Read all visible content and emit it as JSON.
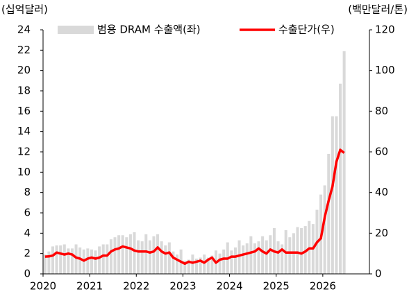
{
  "chart_data": {
    "type": "bar-line",
    "y_label": "(십억달러)",
    "y2_label": "(백만달러/톤)",
    "categories": [
      "2020",
      null,
      null,
      null,
      null,
      null,
      null,
      null,
      null,
      null,
      null,
      null,
      "2021",
      null,
      null,
      null,
      null,
      null,
      null,
      null,
      null,
      null,
      null,
      null,
      "2022",
      null,
      null,
      null,
      null,
      null,
      null,
      null,
      null,
      null,
      null,
      null,
      "2023",
      null,
      null,
      null,
      null,
      null,
      null,
      null,
      null,
      null,
      null,
      null,
      "2024",
      null,
      null,
      null,
      null,
      null,
      null,
      null,
      null,
      null,
      null,
      null,
      "2025",
      null,
      null,
      null,
      null,
      null,
      null,
      null,
      null,
      null,
      null,
      null,
      "2026",
      null,
      null,
      null,
      null,
      null,
      null,
      null,
      null,
      null,
      null,
      null
    ],
    "series": [
      {
        "name": "범용 DRAM 수출액(좌)",
        "color": "#d9d9d9",
        "kind": "bar",
        "axis": "y",
        "values": [
          1.9,
          2.2,
          2.7,
          2.8,
          2.8,
          2.9,
          2.5,
          2.5,
          2.9,
          2.6,
          2.4,
          2.5,
          2.4,
          2.3,
          2.7,
          2.9,
          2.9,
          3.4,
          3.6,
          3.8,
          3.8,
          3.6,
          3.9,
          4.1,
          3.3,
          3.2,
          3.9,
          3.3,
          3.7,
          3.9,
          3.2,
          2.8,
          3.1,
          2.2,
          1.9,
          2.4,
          1.3,
          1.4,
          1.9,
          1.5,
          1.6,
          1.9,
          1.6,
          1.8,
          2.3,
          2.0,
          2.4,
          3.1,
          2.3,
          2.6,
          3.3,
          2.8,
          3.0,
          3.7,
          3.0,
          3.2,
          3.7,
          3.3,
          3.8,
          4.5,
          3.2,
          2.9,
          4.3,
          3.6,
          4.0,
          4.6,
          4.5,
          4.7,
          5.2,
          4.9,
          6.3,
          7.8,
          8.7,
          11.8,
          15.5,
          15.5,
          18.7,
          21.9,
          null,
          null,
          null,
          null,
          null,
          null
        ]
      },
      {
        "name": "수출단가(우)",
        "color": "#ff0000",
        "kind": "line",
        "axis": "y2",
        "values": [
          8.5,
          8.6,
          9,
          10.5,
          10,
          9.5,
          10,
          9.5,
          8,
          7.5,
          6.5,
          7.5,
          8,
          7.5,
          8,
          9,
          9,
          11,
          12,
          12.5,
          13.5,
          13,
          12.5,
          11.5,
          11,
          11,
          11,
          10.5,
          11,
          13,
          11,
          10,
          10.5,
          8,
          7,
          6,
          5,
          6,
          5.5,
          6,
          6.5,
          5.5,
          7,
          8,
          5.5,
          7,
          7.5,
          7.5,
          8.5,
          8.5,
          9,
          9.5,
          10,
          10.5,
          11,
          12.5,
          11,
          10,
          12,
          11,
          10.5,
          12,
          10.5,
          10.5,
          10.5,
          10.5,
          10,
          11,
          12.5,
          12.5,
          15.5,
          17.5,
          28,
          36,
          43,
          55,
          61,
          59.5,
          null,
          null,
          null,
          null,
          null,
          null
        ]
      }
    ],
    "ylim": [
      0,
      24
    ],
    "yticks": [
      0,
      2,
      4,
      6,
      8,
      10,
      12,
      14,
      16,
      18,
      20,
      22,
      24
    ],
    "y2lim": [
      0,
      120
    ],
    "y2ticks": [
      0,
      20,
      40,
      60,
      80,
      100,
      120
    ]
  }
}
